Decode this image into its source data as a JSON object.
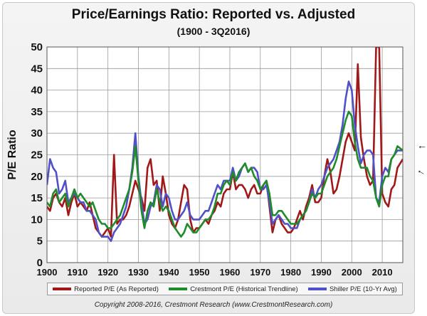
{
  "chart_data": {
    "type": "line",
    "title": "Price/Earnings Ratio: Reported vs. Adjusted",
    "subtitle": "(1900 - 3Q2016)",
    "ylabel": "P/E Ratio",
    "xlabel": "",
    "xlim": [
      1900,
      2016.75
    ],
    "ylim": [
      0,
      50
    ],
    "x_ticks": [
      1900,
      1910,
      1920,
      1930,
      1940,
      1950,
      1960,
      1970,
      1980,
      1990,
      2000,
      2010
    ],
    "y_ticks": [
      0,
      5,
      10,
      15,
      20,
      25,
      30,
      35,
      40,
      45,
      50
    ],
    "grid": true,
    "legend_position": "bottom",
    "series": [
      {
        "name": "Reported P/E (As Reported)",
        "color": "#a01818",
        "x": [
          1900,
          1901,
          1902,
          1903,
          1904,
          1905,
          1906,
          1907,
          1908,
          1909,
          1910,
          1911,
          1912,
          1913,
          1914,
          1915,
          1916,
          1917,
          1918,
          1919,
          1920,
          1921,
          1922,
          1923,
          1924,
          1925,
          1926,
          1927,
          1928,
          1929,
          1930,
          1931,
          1932,
          1933,
          1934,
          1935,
          1936,
          1937,
          1938,
          1939,
          1940,
          1941,
          1942,
          1943,
          1944,
          1945,
          1946,
          1947,
          1948,
          1949,
          1950,
          1951,
          1952,
          1953,
          1954,
          1955,
          1956,
          1957,
          1958,
          1959,
          1960,
          1961,
          1962,
          1963,
          1964,
          1965,
          1966,
          1967,
          1968,
          1969,
          1970,
          1971,
          1972,
          1973,
          1974,
          1975,
          1976,
          1977,
          1978,
          1979,
          1980,
          1981,
          1982,
          1983,
          1984,
          1985,
          1986,
          1987,
          1988,
          1989,
          1990,
          1991,
          1992,
          1993,
          1994,
          1995,
          1996,
          1997,
          1998,
          1999,
          2000,
          2001,
          2002,
          2003,
          2004,
          2005,
          2006,
          2007,
          2008,
          2009,
          2010,
          2011,
          2012,
          2013,
          2014,
          2015,
          2016.75
        ],
        "values": [
          13,
          12,
          15,
          16,
          14,
          13,
          15,
          11,
          14,
          16,
          13,
          14,
          13,
          12,
          14,
          11,
          8,
          7,
          6,
          7,
          8,
          6,
          25,
          9,
          10,
          10,
          11,
          13,
          16,
          19,
          17,
          15,
          12,
          22,
          24,
          18,
          19,
          12,
          20,
          16,
          11,
          9,
          8,
          10,
          14,
          18,
          17,
          10,
          7,
          8,
          8,
          9,
          10,
          9,
          11,
          12,
          14,
          13,
          16,
          17,
          17,
          21,
          17,
          18,
          18,
          17,
          15,
          17,
          18,
          16,
          16,
          18,
          19,
          13,
          7,
          10,
          11,
          9,
          8,
          7,
          7,
          8,
          10,
          12,
          10,
          13,
          15,
          18,
          14,
          14,
          15,
          20,
          24,
          21,
          16,
          17,
          20,
          24,
          28,
          30,
          28,
          26,
          46,
          29,
          24,
          20,
          18,
          19,
          50,
          50,
          16,
          14,
          13,
          17,
          18,
          22,
          24
        ]
      },
      {
        "name": "Crestmont P/E (Historical Trendline)",
        "color": "#1e8c2a",
        "x": [
          1900,
          1901,
          1902,
          1903,
          1904,
          1905,
          1906,
          1907,
          1908,
          1909,
          1910,
          1911,
          1912,
          1913,
          1914,
          1915,
          1916,
          1917,
          1918,
          1919,
          1920,
          1921,
          1922,
          1923,
          1924,
          1925,
          1926,
          1927,
          1928,
          1929,
          1930,
          1931,
          1932,
          1933,
          1934,
          1935,
          1936,
          1937,
          1938,
          1939,
          1940,
          1941,
          1942,
          1943,
          1944,
          1945,
          1946,
          1947,
          1948,
          1949,
          1950,
          1951,
          1952,
          1953,
          1954,
          1955,
          1956,
          1957,
          1958,
          1959,
          1960,
          1961,
          1962,
          1963,
          1964,
          1965,
          1966,
          1967,
          1968,
          1969,
          1970,
          1971,
          1972,
          1973,
          1974,
          1975,
          1976,
          1977,
          1978,
          1979,
          1980,
          1981,
          1982,
          1983,
          1984,
          1985,
          1986,
          1987,
          1988,
          1989,
          1990,
          1991,
          1992,
          1993,
          1994,
          1995,
          1996,
          1997,
          1998,
          1999,
          2000,
          2001,
          2002,
          2003,
          2004,
          2005,
          2006,
          2007,
          2008,
          2009,
          2010,
          2011,
          2012,
          2013,
          2014,
          2015,
          2016.75
        ],
        "values": [
          14,
          13,
          16,
          17,
          14,
          15,
          16,
          13,
          15,
          17,
          15,
          16,
          15,
          14,
          13,
          14,
          12,
          10,
          9,
          9,
          8,
          8,
          9,
          10,
          11,
          13,
          15,
          17,
          21,
          27,
          19,
          12,
          8,
          12,
          14,
          13,
          17,
          14,
          12,
          13,
          12,
          10,
          8,
          7,
          6,
          7,
          9,
          8,
          7,
          7,
          8,
          9,
          10,
          10,
          11,
          13,
          16,
          16,
          18,
          19,
          18,
          21,
          19,
          21,
          22,
          23,
          21,
          22,
          20,
          19,
          17,
          18,
          19,
          16,
          11,
          11,
          12,
          12,
          11,
          10,
          9,
          9,
          9,
          10,
          11,
          12,
          14,
          16,
          15,
          16,
          16,
          18,
          20,
          21,
          22,
          24,
          27,
          30,
          33,
          35,
          34,
          28,
          24,
          22,
          22,
          22,
          20,
          19,
          15,
          13,
          18,
          20,
          20,
          24,
          25,
          27,
          26
        ]
      },
      {
        "name": "Shiller P/E (10-Yr Avg)",
        "color": "#5050c8",
        "x": [
          1900,
          1901,
          1902,
          1903,
          1904,
          1905,
          1906,
          1907,
          1908,
          1909,
          1910,
          1911,
          1912,
          1913,
          1914,
          1915,
          1916,
          1917,
          1918,
          1919,
          1920,
          1921,
          1922,
          1923,
          1924,
          1925,
          1926,
          1927,
          1928,
          1929,
          1930,
          1931,
          1932,
          1933,
          1934,
          1935,
          1936,
          1937,
          1938,
          1939,
          1940,
          1941,
          1942,
          1943,
          1944,
          1945,
          1946,
          1947,
          1948,
          1949,
          1950,
          1951,
          1952,
          1953,
          1954,
          1955,
          1956,
          1957,
          1958,
          1959,
          1960,
          1961,
          1962,
          1963,
          1964,
          1965,
          1966,
          1967,
          1968,
          1969,
          1970,
          1971,
          1972,
          1973,
          1974,
          1975,
          1976,
          1977,
          1978,
          1979,
          1980,
          1981,
          1982,
          1983,
          1984,
          1985,
          1986,
          1987,
          1988,
          1989,
          1990,
          1991,
          1992,
          1993,
          1994,
          1995,
          1996,
          1997,
          1998,
          1999,
          2000,
          2001,
          2002,
          2003,
          2004,
          2005,
          2006,
          2007,
          2008,
          2009,
          2010,
          2011,
          2012,
          2013,
          2014,
          2015,
          2016.75
        ],
        "values": [
          18,
          24,
          22,
          21,
          16,
          17,
          19,
          14,
          15,
          16,
          15,
          14,
          14,
          12,
          12,
          11,
          10,
          7,
          6,
          6,
          6,
          5,
          7,
          8,
          9,
          11,
          13,
          17,
          22,
          30,
          20,
          14,
          9,
          10,
          13,
          14,
          18,
          17,
          13,
          16,
          15,
          12,
          10,
          10,
          11,
          12,
          14,
          11,
          10,
          10,
          10,
          11,
          12,
          12,
          14,
          16,
          18,
          17,
          19,
          19,
          19,
          22,
          19,
          20,
          22,
          23,
          21,
          22,
          22,
          21,
          17,
          17,
          18,
          14,
          9,
          10,
          11,
          10,
          9,
          9,
          8,
          8,
          8,
          10,
          11,
          12,
          14,
          17,
          15,
          17,
          18,
          20,
          22,
          23,
          24,
          26,
          28,
          32,
          38,
          42,
          40,
          32,
          27,
          23,
          25,
          26,
          26,
          25,
          15,
          14,
          20,
          22,
          21,
          24,
          25,
          26,
          26
        ]
      }
    ],
    "annotations": {
      "copyright": "Copyright 2008-2016, Crestmont Research (www.CrestmontResearch.com)"
    }
  }
}
